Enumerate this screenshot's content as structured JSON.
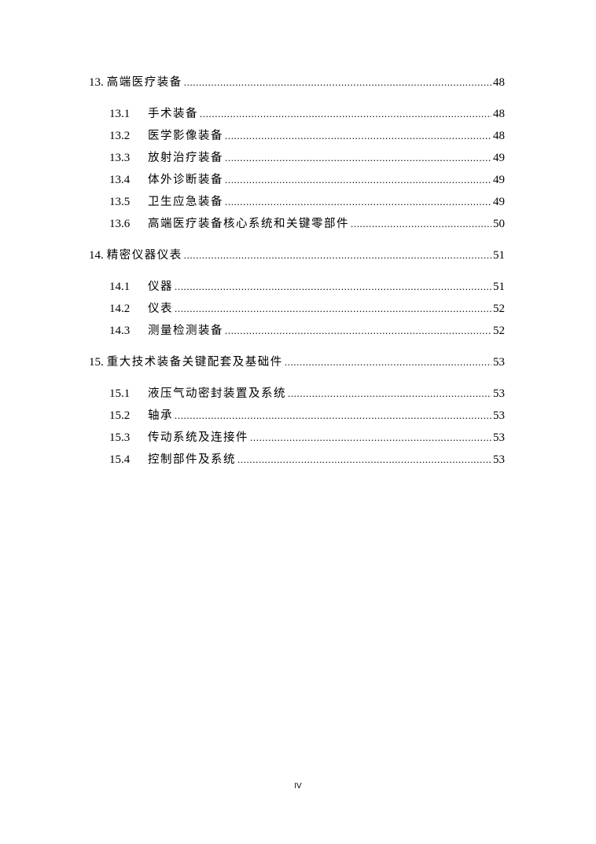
{
  "toc": [
    {
      "number": "13.",
      "title": "高端医疗装备",
      "page": "48",
      "items": [
        {
          "number": "13.1",
          "title": "手术装备",
          "page": "48"
        },
        {
          "number": "13.2",
          "title": "医学影像装备",
          "page": "48"
        },
        {
          "number": "13.3",
          "title": "放射治疗装备",
          "page": "49"
        },
        {
          "number": "13.4",
          "title": "体外诊断装备",
          "page": "49"
        },
        {
          "number": "13.5",
          "title": "卫生应急装备",
          "page": "49"
        },
        {
          "number": "13.6",
          "title": "高端医疗装备核心系统和关键零部件",
          "page": "50"
        }
      ]
    },
    {
      "number": "14.",
      "title": "精密仪器仪表",
      "page": "51",
      "items": [
        {
          "number": "14.1",
          "title": "仪器",
          "page": "51"
        },
        {
          "number": "14.2",
          "title": "仪表",
          "page": "52"
        },
        {
          "number": "14.3",
          "title": "测量检测装备",
          "page": "52"
        }
      ]
    },
    {
      "number": "15.",
      "title": "重大技术装备关键配套及基础件",
      "page": "53",
      "items": [
        {
          "number": "15.1",
          "title": "液压气动密封装置及系统",
          "page": "53"
        },
        {
          "number": "15.2",
          "title": "轴承",
          "page": "53"
        },
        {
          "number": "15.3",
          "title": "传动系统及连接件",
          "page": "53"
        },
        {
          "number": "15.4",
          "title": "控制部件及系统",
          "page": "53"
        }
      ]
    }
  ],
  "footer": {
    "page_number": "IV"
  }
}
